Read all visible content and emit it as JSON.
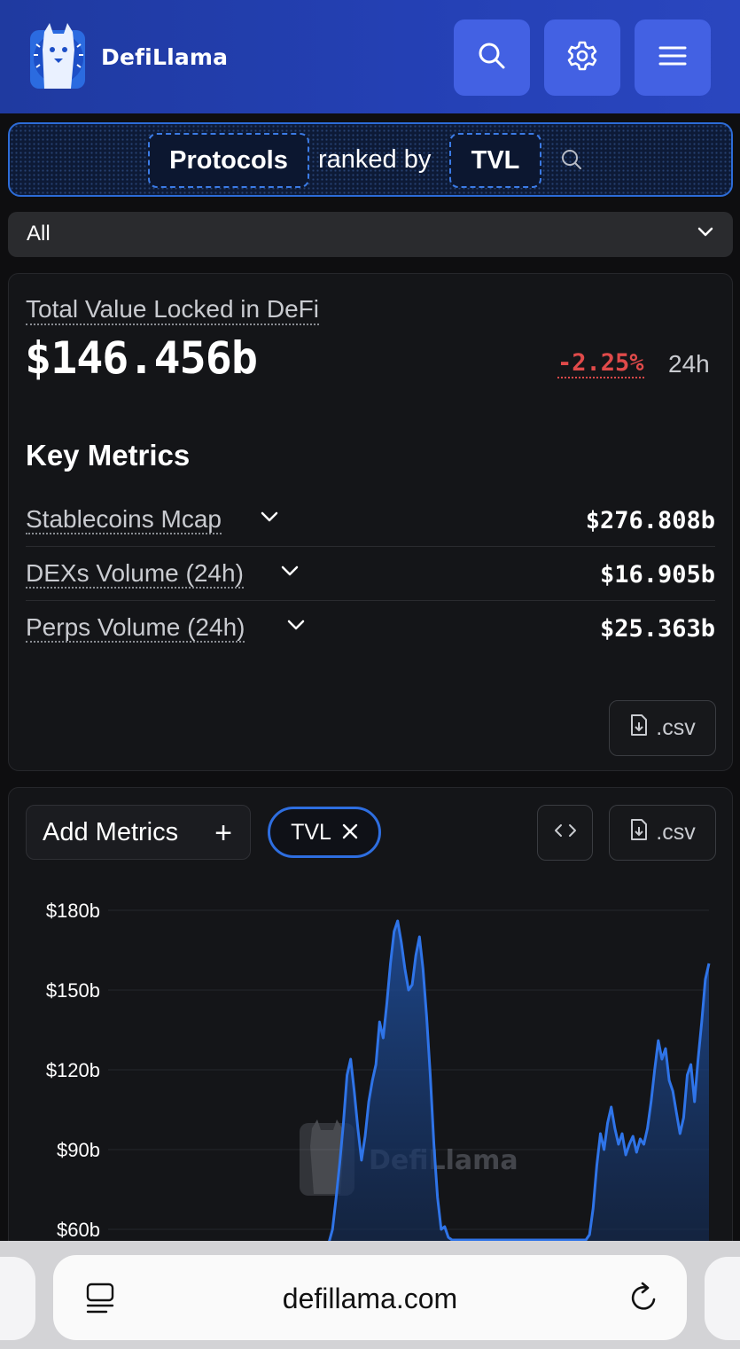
{
  "header": {
    "brand": "DefiLlama",
    "buttons": [
      {
        "name": "search",
        "icon": "search-icon"
      },
      {
        "name": "settings",
        "icon": "gear-icon"
      },
      {
        "name": "menu",
        "icon": "menu-icon"
      }
    ],
    "accent_color": "#4361e3"
  },
  "ranking": {
    "entity": "Protocols",
    "connector": "ranked by",
    "metric": "TVL",
    "search_icon": "search-icon"
  },
  "filter": {
    "selected": "All"
  },
  "tvl_summary": {
    "label": "Total Value Locked in DeFi",
    "value": "$146.456b",
    "change": "-2.25%",
    "change_period": "24h",
    "change_color": "#e04a4a",
    "key_metrics_title": "Key Metrics",
    "metrics": [
      {
        "label": "Stablecoins Mcap",
        "value": "$276.808b"
      },
      {
        "label": "DEXs Volume (24h)",
        "value": "$16.905b"
      },
      {
        "label": "Perps Volume (24h)",
        "value": "$25.363b"
      }
    ],
    "csv_label": ".csv"
  },
  "chart_controls": {
    "add_metrics_label": "Add Metrics",
    "active_metric": "TVL",
    "csv_label": ".csv"
  },
  "chart_data": {
    "type": "area",
    "title": "",
    "xlabel": "",
    "ylabel": "",
    "ylim": [
      60,
      180
    ],
    "ytick_labels": [
      "$180b",
      "$150b",
      "$120b",
      "$90b",
      "$60b"
    ],
    "ytick_values": [
      180,
      150,
      120,
      90,
      60
    ],
    "grid": true,
    "watermark": "DefiLlama",
    "series": [
      {
        "color": "#2f74e8",
        "values": [
          55,
          55,
          55,
          55,
          55,
          55,
          55,
          55,
          55,
          55,
          55,
          55,
          55,
          55,
          55,
          55,
          55,
          55,
          55,
          55,
          55,
          55,
          55,
          55,
          55,
          55,
          55,
          55,
          55,
          55,
          55,
          55,
          55,
          55,
          55,
          55,
          55,
          55,
          55,
          55,
          55,
          55,
          55,
          55,
          55,
          55,
          55,
          55,
          55,
          55,
          55,
          55,
          55,
          55,
          55,
          55,
          55,
          55,
          55,
          55,
          55,
          55,
          60,
          72,
          85,
          100,
          118,
          124,
          112,
          98,
          86,
          95,
          108,
          116,
          122,
          138,
          132,
          145,
          160,
          172,
          176,
          168,
          158,
          150,
          152,
          163,
          170,
          158,
          140,
          118,
          92,
          72,
          60,
          61,
          57,
          56,
          56,
          56,
          56,
          56,
          56,
          56,
          56,
          56,
          56,
          56,
          56,
          56,
          56,
          56,
          56,
          56,
          56,
          56,
          56,
          56,
          56,
          56,
          56,
          56,
          56,
          56,
          56,
          56,
          56,
          56,
          56,
          56,
          56,
          56,
          56,
          56,
          56,
          58,
          68,
          84,
          96,
          90,
          100,
          106,
          98,
          92,
          96,
          88,
          92,
          95,
          89,
          94,
          92,
          98,
          108,
          120,
          131,
          124,
          128,
          116,
          112,
          104,
          96,
          102,
          118,
          122,
          108,
          124,
          138,
          154,
          160
        ]
      }
    ]
  },
  "browser": {
    "url": "defillama.com",
    "left_icon": "tab-overview-icon",
    "right_icon": "reload-icon"
  }
}
